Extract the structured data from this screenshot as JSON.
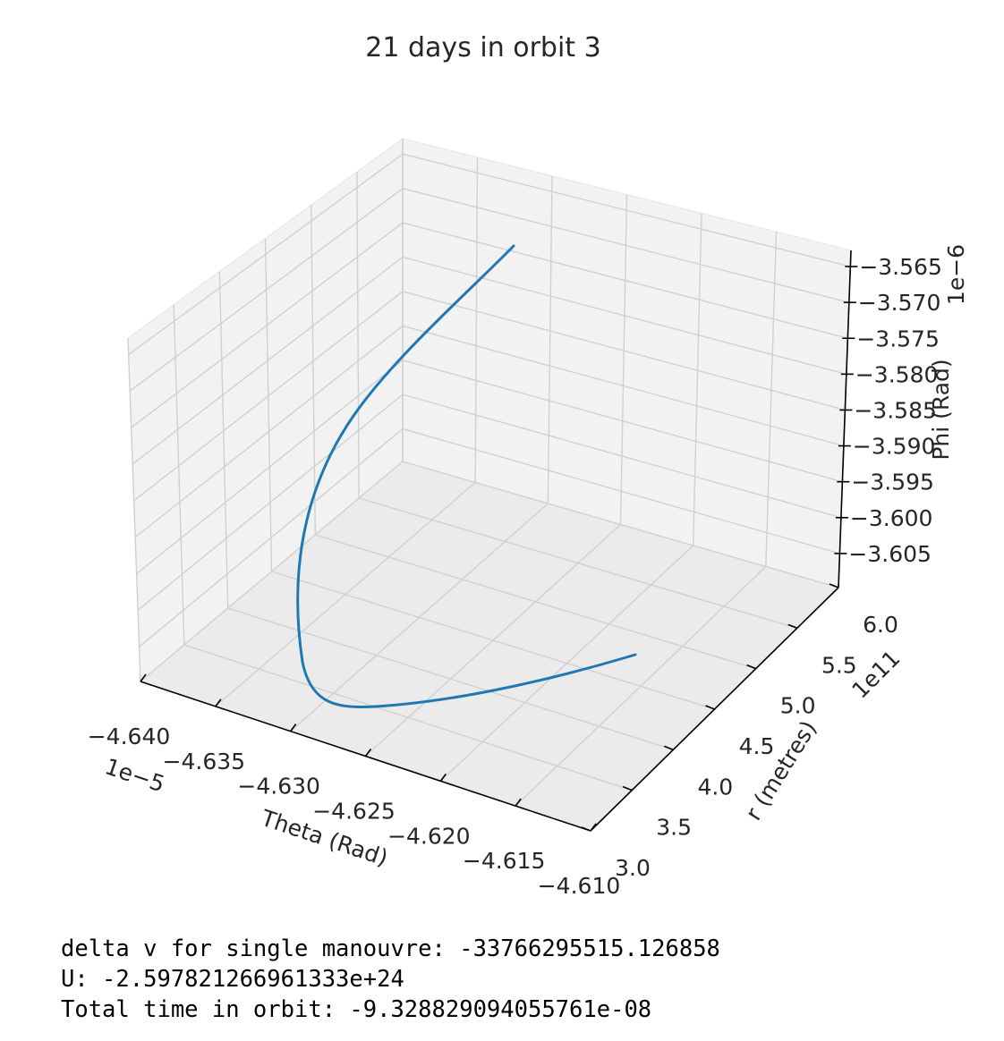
{
  "chart_data": {
    "type": "line3d",
    "title": "21 days in orbit 3",
    "xlabel": "Theta (Rad)",
    "ylabel": "r (metres)",
    "zlabel": "Phi (Rad)",
    "x_offset_label": "1e−5",
    "y_offset_label": "1e11",
    "z_offset_label": "1e−6",
    "x_ticks": [
      "−4.640",
      "−4.635",
      "−4.630",
      "−4.625",
      "−4.620",
      "−4.615",
      "−4.610"
    ],
    "y_ticks": [
      "3.0",
      "3.5",
      "4.0",
      "4.5",
      "5.0",
      "5.5",
      "6.0"
    ],
    "z_ticks": [
      "−3.565",
      "−3.570",
      "−3.575",
      "−3.580",
      "−3.585",
      "−3.590",
      "−3.595",
      "−3.600",
      "−3.605"
    ],
    "xlim": [
      -4.64,
      -4.61
    ],
    "ylim": [
      3.0,
      6.0
    ],
    "zlim": [
      -3.605,
      -3.565
    ],
    "grid": true,
    "line_color": "#1f77b4"
  },
  "output": {
    "lines": [
      "delta v for single manouvre: -33766295515.126858",
      "U: -2.597821266961333e+24",
      "Total time in orbit: -9.328829094055761e-08"
    ]
  }
}
